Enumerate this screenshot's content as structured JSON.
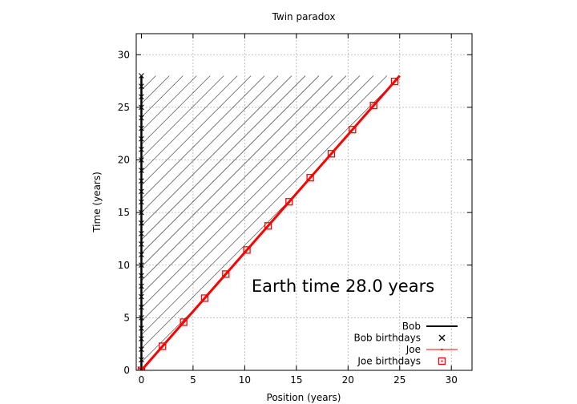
{
  "chart_data": {
    "type": "line",
    "title": "Twin paradox",
    "xlabel": "Position (years)",
    "ylabel": "Time (years)",
    "xlim": [
      -0.5,
      32
    ],
    "ylim": [
      0,
      32
    ],
    "xticks": [
      0,
      5,
      10,
      15,
      20,
      25,
      30
    ],
    "yticks": [
      0,
      5,
      10,
      15,
      20,
      25,
      30
    ],
    "grid": true,
    "legend_position": "bottom-right",
    "annotation": "Earth time 28.0 years",
    "series": [
      {
        "name": "Bob",
        "style": "line",
        "color": "#000000",
        "x": [
          0,
          0
        ],
        "y": [
          0,
          28
        ]
      },
      {
        "name": "Bob birthdays",
        "style": "cross-markers",
        "color": "#000000",
        "x": [
          0,
          0,
          0,
          0,
          0,
          0,
          0,
          0,
          0,
          0,
          0,
          0,
          0,
          0,
          0,
          0,
          0,
          0,
          0,
          0,
          0,
          0,
          0,
          0,
          0,
          0,
          0,
          0,
          0
        ],
        "y": [
          0,
          1,
          2,
          3,
          4,
          5,
          6,
          7,
          8,
          9,
          10,
          11,
          12,
          13,
          14,
          15,
          16,
          17,
          18,
          19,
          20,
          21,
          22,
          23,
          24,
          25,
          26,
          27,
          28
        ]
      },
      {
        "name": "Joe",
        "style": "line",
        "color": "#ff0000",
        "x": [
          0,
          25
        ],
        "y": [
          0,
          28
        ]
      },
      {
        "name": "Joe birthdays",
        "style": "square-markers",
        "color": "#ff0000",
        "x": [
          0,
          2.04,
          4.09,
          6.13,
          8.17,
          10.21,
          12.26,
          14.3,
          16.34,
          18.39,
          20.43,
          22.47,
          24.51
        ],
        "y": [
          0,
          2.29,
          4.58,
          6.86,
          9.15,
          11.44,
          13.73,
          16.02,
          18.31,
          20.59,
          22.88,
          25.17,
          27.46
        ]
      }
    ],
    "hatched_region": {
      "x": [
        0,
        0,
        25,
        25
      ],
      "y": [
        0,
        28,
        28,
        28
      ]
    }
  }
}
